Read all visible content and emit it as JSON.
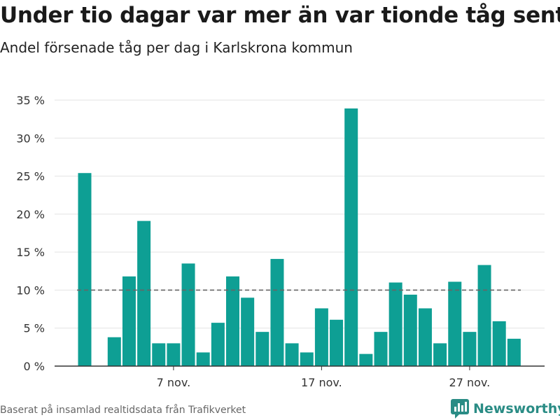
{
  "title": "Under tio dagar var mer än var tionde tåg sent",
  "subtitle": "Andel försenade tåg per dag i Karlskrona kommun",
  "footer": "Baserat på insamlad realtidsdata från Trafikverket",
  "brand": {
    "name": "Newsworthy",
    "icon": "bar-chart-logo-icon",
    "color": "#2a8c85"
  },
  "colors": {
    "bar": "#0e9f94",
    "reference_line": "#666666",
    "grid": "#e3e3e3"
  },
  "chart_data": {
    "type": "bar",
    "x_ticks": [
      "7 nov.",
      "17 nov.",
      "27 nov."
    ],
    "x_tick_indices": [
      6,
      16,
      26
    ],
    "values": [
      25.4,
      0,
      3.8,
      11.8,
      19.1,
      3.0,
      3.0,
      13.5,
      1.8,
      5.7,
      11.8,
      9.0,
      4.5,
      14.1,
      3.0,
      1.8,
      7.6,
      6.1,
      33.9,
      1.6,
      4.5,
      11.0,
      9.4,
      7.6,
      3.0,
      11.1,
      4.5,
      13.3,
      5.9,
      3.6
    ],
    "y_ticks": [
      "0 %",
      "5 %",
      "10 %",
      "15 %",
      "20 %",
      "25 %",
      "30 %",
      "35 %"
    ],
    "ylim": [
      0,
      35
    ],
    "reference_line": 10,
    "grid": true
  }
}
